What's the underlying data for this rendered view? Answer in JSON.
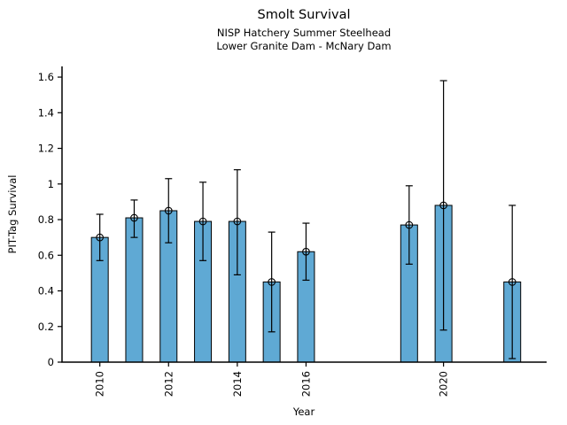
{
  "chart_data": {
    "type": "bar",
    "title": "Smolt Survival",
    "subtitle1": "NISP Hatchery Summer Steelhead",
    "subtitle2": "Lower Granite Dam - McNary Dam",
    "xlabel": "Year",
    "ylabel": "PIT-Tag Survival",
    "categories": [
      2010,
      2011,
      2012,
      2013,
      2014,
      2015,
      2016,
      2019,
      2020,
      2022
    ],
    "values": [
      0.7,
      0.81,
      0.85,
      0.79,
      0.79,
      0.45,
      0.62,
      0.77,
      0.88,
      0.45
    ],
    "error_low": [
      0.57,
      0.7,
      0.67,
      0.57,
      0.49,
      0.17,
      0.46,
      0.55,
      0.18,
      0.02
    ],
    "error_high": [
      0.83,
      0.91,
      1.03,
      1.01,
      1.08,
      0.73,
      0.78,
      0.99,
      1.58,
      0.88
    ],
    "x_tick_values": [
      2010,
      2012,
      2014,
      2016,
      2020
    ],
    "x_tick_labels": [
      "2010",
      "2012",
      "2014",
      "2016",
      "2020"
    ],
    "y_tick_values": [
      0,
      0.2,
      0.4,
      0.6,
      0.8,
      1,
      1.2,
      1.4,
      1.6
    ],
    "y_tick_labels": [
      "0",
      "0.2",
      "0.4",
      "0.6",
      "0.8",
      "1",
      "1.2",
      "1.4",
      "1.6"
    ],
    "xlim": [
      2008.9,
      2023.0
    ],
    "ylim": [
      0,
      1.66
    ],
    "grid": false,
    "legend_position": "none",
    "marker": "open-circle",
    "bar_color": "#5FA9D4",
    "bar_edge_color": "#000000",
    "error_bar_color": "#000000",
    "axis_color": "#000000"
  }
}
